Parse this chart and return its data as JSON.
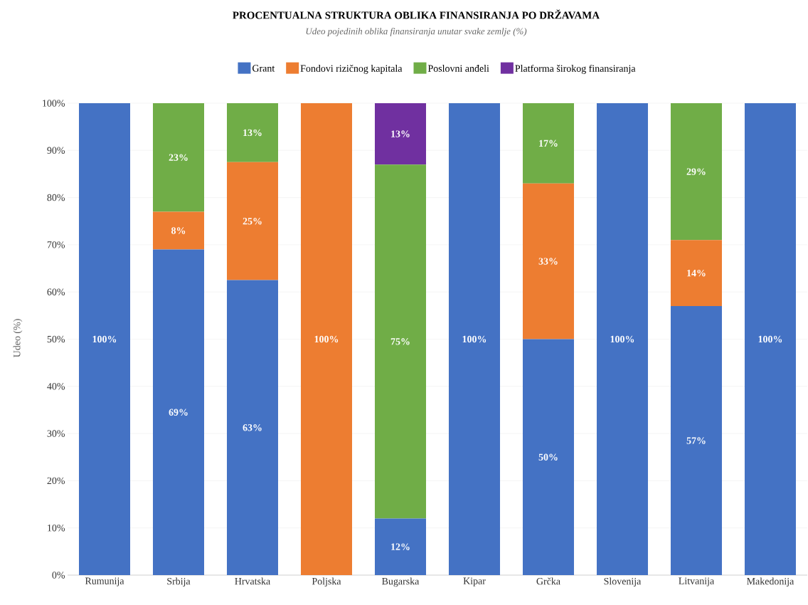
{
  "chart_data": {
    "type": "bar",
    "stacked": true,
    "title": "PROCENTUALNA STRUKTURA OBLIKA FINANSIRANJA PO DRŽAVAMA",
    "subtitle": "Udeo pojedinih oblika finansiranja unutar svake zemlje (%)",
    "ylabel": "Udeo (%)",
    "categories": [
      "Rumunija",
      "Srbija",
      "Hrvatska",
      "Poljska",
      "Bugarska",
      "Kipar",
      "Grčka",
      "Slovenija",
      "Litvanija",
      "Makedonija"
    ],
    "series": [
      {
        "name": "Grant",
        "color": "#4472c4",
        "values": [
          100,
          69,
          62.5,
          0,
          12,
          100,
          50,
          100,
          57,
          100
        ],
        "value_labels": [
          "100%",
          "69%",
          "63%",
          null,
          "12%",
          "100%",
          "50%",
          "100%",
          "57%",
          "100%"
        ]
      },
      {
        "name": "Fondovi rizičnog kapitala",
        "color": "#ed7d31",
        "values": [
          0,
          8,
          25,
          100,
          0,
          0,
          33,
          0,
          14,
          0
        ],
        "value_labels": [
          null,
          "8%",
          "25%",
          "100%",
          null,
          null,
          "33%",
          null,
          "14%",
          null
        ]
      },
      {
        "name": "Poslovni anđeli",
        "color": "#70ad47",
        "values": [
          0,
          23,
          12.5,
          0,
          75,
          0,
          17,
          0,
          29,
          0
        ],
        "value_labels": [
          null,
          "23%",
          "13%",
          null,
          "75%",
          null,
          "17%",
          null,
          "29%",
          null
        ]
      },
      {
        "name": "Platforma širokog finansiranja",
        "color": "#7030a0",
        "values": [
          0,
          0,
          0,
          0,
          13,
          0,
          0,
          0,
          0,
          0
        ],
        "value_labels": [
          null,
          null,
          null,
          null,
          "13%",
          null,
          null,
          null,
          null,
          null
        ]
      }
    ],
    "ylim": [
      0,
      100
    ],
    "yticks": [
      {
        "value": 0,
        "label": "0%"
      },
      {
        "value": 10,
        "label": "10%"
      },
      {
        "value": 20,
        "label": "20%"
      },
      {
        "value": 30,
        "label": "30%"
      },
      {
        "value": 40,
        "label": "40%"
      },
      {
        "value": 50,
        "label": "50%"
      },
      {
        "value": 60,
        "label": "60%"
      },
      {
        "value": 70,
        "label": "70%"
      },
      {
        "value": 80,
        "label": "80%"
      },
      {
        "value": 90,
        "label": "90%"
      },
      {
        "value": 100,
        "label": "100%"
      }
    ],
    "grid": "y",
    "legend": "top"
  }
}
